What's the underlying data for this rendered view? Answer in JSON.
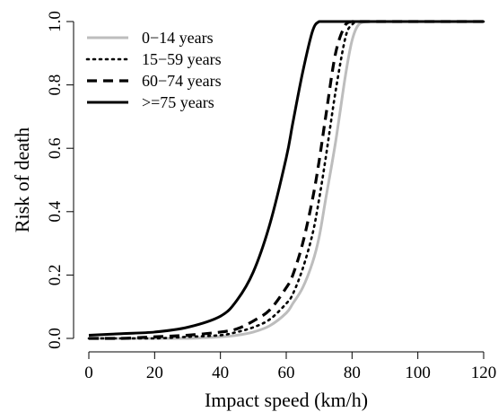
{
  "chart_data": {
    "type": "line",
    "title": "",
    "xlabel": "Impact speed (km/h)",
    "ylabel": "Risk of death",
    "xlim": [
      0,
      120
    ],
    "ylim": [
      0,
      1
    ],
    "xticks": [
      "0",
      "20",
      "40",
      "60",
      "80",
      "100",
      "120"
    ],
    "yticks": [
      "0.0",
      "0.2",
      "0.4",
      "0.6",
      "0.8",
      "1.0"
    ],
    "grid": false,
    "legend_position": "top-left",
    "x": [
      0,
      10,
      20,
      30,
      40,
      45,
      50,
      55,
      60,
      62,
      65,
      68,
      70,
      72,
      75,
      78,
      80,
      82,
      85,
      88,
      90,
      100,
      110,
      120
    ],
    "series": [
      {
        "name": "0−14 years",
        "color": "#bdbdbd",
        "style": "solid",
        "values": [
          0.0,
          0.0,
          0.0,
          0.0,
          0.005,
          0.01,
          0.02,
          0.04,
          0.08,
          0.11,
          0.16,
          0.24,
          0.32,
          0.44,
          0.62,
          0.83,
          0.94,
          0.99,
          1.0,
          1.0,
          1.0,
          1.0,
          1.0,
          1.0
        ]
      },
      {
        "name": "15−59 years",
        "color": "#000000",
        "style": "dotted",
        "values": [
          0.0,
          0.0,
          0.0,
          0.005,
          0.01,
          0.02,
          0.035,
          0.06,
          0.11,
          0.14,
          0.22,
          0.33,
          0.44,
          0.57,
          0.78,
          0.95,
          0.99,
          1.0,
          1.0,
          1.0,
          1.0,
          1.0,
          1.0,
          1.0
        ]
      },
      {
        "name": "60−74 years",
        "color": "#000000",
        "style": "dashed",
        "values": [
          0.0,
          0.0,
          0.005,
          0.01,
          0.02,
          0.03,
          0.055,
          0.09,
          0.16,
          0.2,
          0.3,
          0.44,
          0.56,
          0.7,
          0.9,
          0.99,
          1.0,
          1.0,
          1.0,
          1.0,
          1.0,
          1.0,
          1.0,
          1.0
        ]
      },
      {
        "name": ">=75 years",
        "color": "#000000",
        "style": "solid",
        "values": [
          0.01,
          0.015,
          0.02,
          0.035,
          0.07,
          0.12,
          0.21,
          0.36,
          0.57,
          0.68,
          0.84,
          0.97,
          1.0,
          1.0,
          1.0,
          1.0,
          1.0,
          1.0,
          1.0,
          1.0,
          1.0,
          1.0,
          1.0,
          1.0
        ]
      }
    ]
  }
}
